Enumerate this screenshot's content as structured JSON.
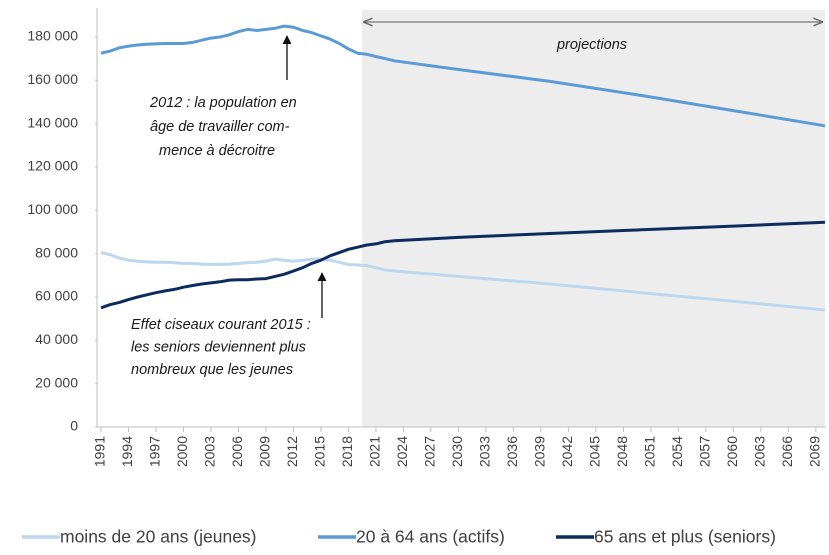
{
  "chart_data": {
    "type": "line",
    "annotations": [
      [
        "projections"
      ],
      [
        "2012 : la population en",
        "âge de travailler com-",
        "mence à décroitre"
      ],
      [
        "Effet ciseaux courant 2015 :",
        "les seniors deviennent plus",
        "nombreux que les jeunes"
      ]
    ],
    "x": [
      1991,
      1992,
      1993,
      1994,
      1995,
      1996,
      1997,
      1998,
      1999,
      2000,
      2001,
      2002,
      2003,
      2004,
      2005,
      2006,
      2007,
      2008,
      2009,
      2010,
      2011,
      2012,
      2013,
      2014,
      2015,
      2016,
      2017,
      2018,
      2019,
      2020,
      2021,
      2022,
      2023,
      2030,
      2040,
      2050,
      2060,
      2070
    ],
    "series": [
      {
        "name": "moins de 20 ans (jeunes)",
        "color": "#bdd7ee",
        "values": [
          80500,
          79500,
          78000,
          77000,
          76500,
          76200,
          76000,
          76000,
          75800,
          75500,
          75500,
          75200,
          75000,
          75000,
          75200,
          75500,
          75800,
          76000,
          76500,
          77500,
          77000,
          76500,
          77000,
          77500,
          77500,
          77000,
          76000,
          75000,
          74800,
          74500,
          73500,
          72500,
          72000,
          69500,
          66000,
          62000,
          58000,
          54000
        ]
      },
      {
        "name": "20 à 64 ans (actifs)",
        "color": "#5b9bd5",
        "values": [
          172500,
          173500,
          175000,
          175800,
          176300,
          176600,
          176800,
          177000,
          177000,
          177000,
          177500,
          178500,
          179500,
          180000,
          181000,
          182500,
          183500,
          183000,
          183500,
          184000,
          185000,
          184500,
          183000,
          182000,
          180500,
          179000,
          177000,
          174500,
          172500,
          172000,
          171000,
          170000,
          169000,
          165000,
          159500,
          153000,
          146000,
          139000
        ]
      },
      {
        "name": "65 ans et plus (seniors)",
        "color": "#0d2b5e",
        "values": [
          55000,
          56500,
          57500,
          58800,
          60000,
          61000,
          62000,
          62800,
          63500,
          64500,
          65300,
          66000,
          66500,
          67000,
          67800,
          68000,
          68000,
          68300,
          68500,
          69500,
          70500,
          72000,
          73500,
          75500,
          77000,
          79000,
          80500,
          82000,
          83000,
          84000,
          84500,
          85500,
          86000,
          87500,
          89300,
          91000,
          92700,
          94500
        ]
      }
    ],
    "xlim": [
      1991,
      2070
    ],
    "xticks": [
      1991,
      1994,
      1997,
      2000,
      2003,
      2006,
      2009,
      2012,
      2015,
      2018,
      2021,
      2024,
      2027,
      2030,
      2033,
      2036,
      2039,
      2042,
      2045,
      2048,
      2051,
      2054,
      2057,
      2060,
      2063,
      2066,
      2069
    ],
    "ylim": [
      0,
      190000
    ],
    "yticks": [
      0,
      {
        "value": 20000,
        "label": "20 000"
      },
      {
        "value": 40000,
        "label": "40 000"
      },
      {
        "value": 60000,
        "label": "60 000"
      },
      {
        "value": 80000,
        "label": "80 000"
      },
      {
        "value": 100000,
        "label": "100 000"
      },
      {
        "value": 120000,
        "label": "120 000"
      },
      {
        "value": 140000,
        "label": "140 000"
      },
      {
        "value": 160000,
        "label": "160 000"
      },
      {
        "value": 180000,
        "label": "180 000"
      }
    ],
    "grid": false,
    "legend": "bottom"
  }
}
